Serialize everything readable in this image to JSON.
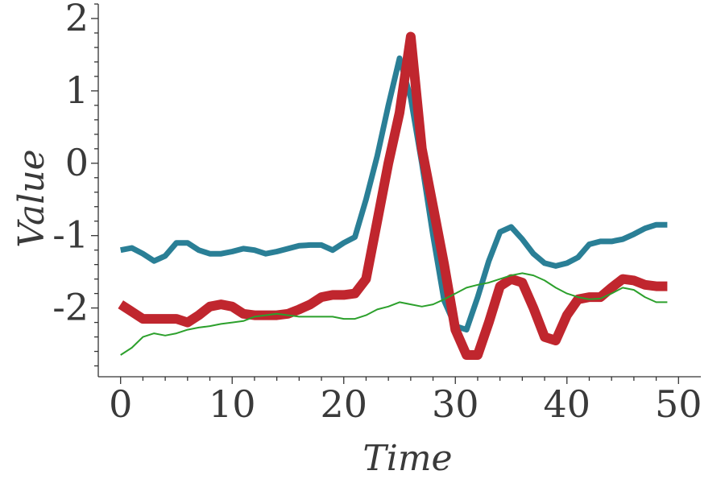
{
  "chart_data": {
    "type": "line",
    "xlabel": "Time",
    "ylabel": "Value",
    "xlim": [
      -2,
      52
    ],
    "ylim": [
      -2.95,
      2.2
    ],
    "x_ticks": [
      0,
      10,
      20,
      30,
      40,
      50
    ],
    "x_tick_labels": [
      "0",
      "10",
      "20",
      "30",
      "40",
      "50"
    ],
    "y_ticks": [
      2,
      1,
      0,
      -1,
      -2
    ],
    "y_tick_labels": [
      "2",
      "1",
      "0",
      "-1",
      "-2"
    ],
    "grid": false,
    "legend": "none",
    "x": [
      0,
      1,
      2,
      3,
      4,
      5,
      6,
      7,
      8,
      9,
      10,
      11,
      12,
      13,
      14,
      15,
      16,
      17,
      18,
      19,
      20,
      21,
      22,
      23,
      24,
      25,
      26,
      27,
      28,
      29,
      30,
      31,
      32,
      33,
      34,
      35,
      36,
      37,
      38,
      39,
      40,
      41,
      42,
      43,
      44,
      45,
      46,
      47,
      48,
      49
    ],
    "series": [
      {
        "color": "#2a7f96",
        "values": [
          -1.2,
          -1.17,
          -1.25,
          -1.35,
          -1.28,
          -1.1,
          -1.1,
          -1.2,
          -1.25,
          -1.25,
          -1.22,
          -1.18,
          -1.2,
          -1.25,
          -1.22,
          -1.18,
          -1.14,
          -1.13,
          -1.13,
          -1.2,
          -1.1,
          -1.02,
          -0.5,
          0.1,
          0.8,
          1.45,
          0.9,
          0.0,
          -1.0,
          -1.9,
          -2.25,
          -2.3,
          -1.85,
          -1.35,
          -0.95,
          -0.88,
          -1.05,
          -1.25,
          -1.38,
          -1.42,
          -1.38,
          -1.3,
          -1.12,
          -1.08,
          -1.08,
          -1.05,
          -0.98,
          -0.9,
          -0.85,
          -0.85
        ]
      },
      {
        "color": "#c0262e",
        "values": [
          -1.95,
          -2.05,
          -2.15,
          -2.15,
          -2.15,
          -2.15,
          -2.2,
          -2.1,
          -1.98,
          -1.95,
          -1.98,
          -2.08,
          -2.1,
          -2.1,
          -2.1,
          -2.08,
          -2.02,
          -1.95,
          -1.85,
          -1.82,
          -1.82,
          -1.8,
          -1.6,
          -0.8,
          0.0,
          0.7,
          1.75,
          0.2,
          -0.6,
          -1.4,
          -2.3,
          -2.65,
          -2.65,
          -2.2,
          -1.7,
          -1.6,
          -1.65,
          -2.0,
          -2.4,
          -2.45,
          -2.1,
          -1.88,
          -1.85,
          -1.85,
          -1.72,
          -1.6,
          -1.62,
          -1.68,
          -1.7,
          -1.7
        ]
      },
      {
        "color": "#2ca02c",
        "values": [
          -2.65,
          -2.55,
          -2.4,
          -2.35,
          -2.38,
          -2.35,
          -2.3,
          -2.27,
          -2.25,
          -2.22,
          -2.2,
          -2.18,
          -2.12,
          -2.1,
          -2.08,
          -2.1,
          -2.12,
          -2.12,
          -2.12,
          -2.12,
          -2.15,
          -2.15,
          -2.1,
          -2.02,
          -1.98,
          -1.92,
          -1.95,
          -1.98,
          -1.95,
          -1.88,
          -1.8,
          -1.72,
          -1.68,
          -1.65,
          -1.6,
          -1.55,
          -1.52,
          -1.55,
          -1.62,
          -1.72,
          -1.8,
          -1.85,
          -1.88,
          -1.87,
          -1.8,
          -1.72,
          -1.75,
          -1.85,
          -1.92,
          -1.92
        ]
      }
    ]
  }
}
